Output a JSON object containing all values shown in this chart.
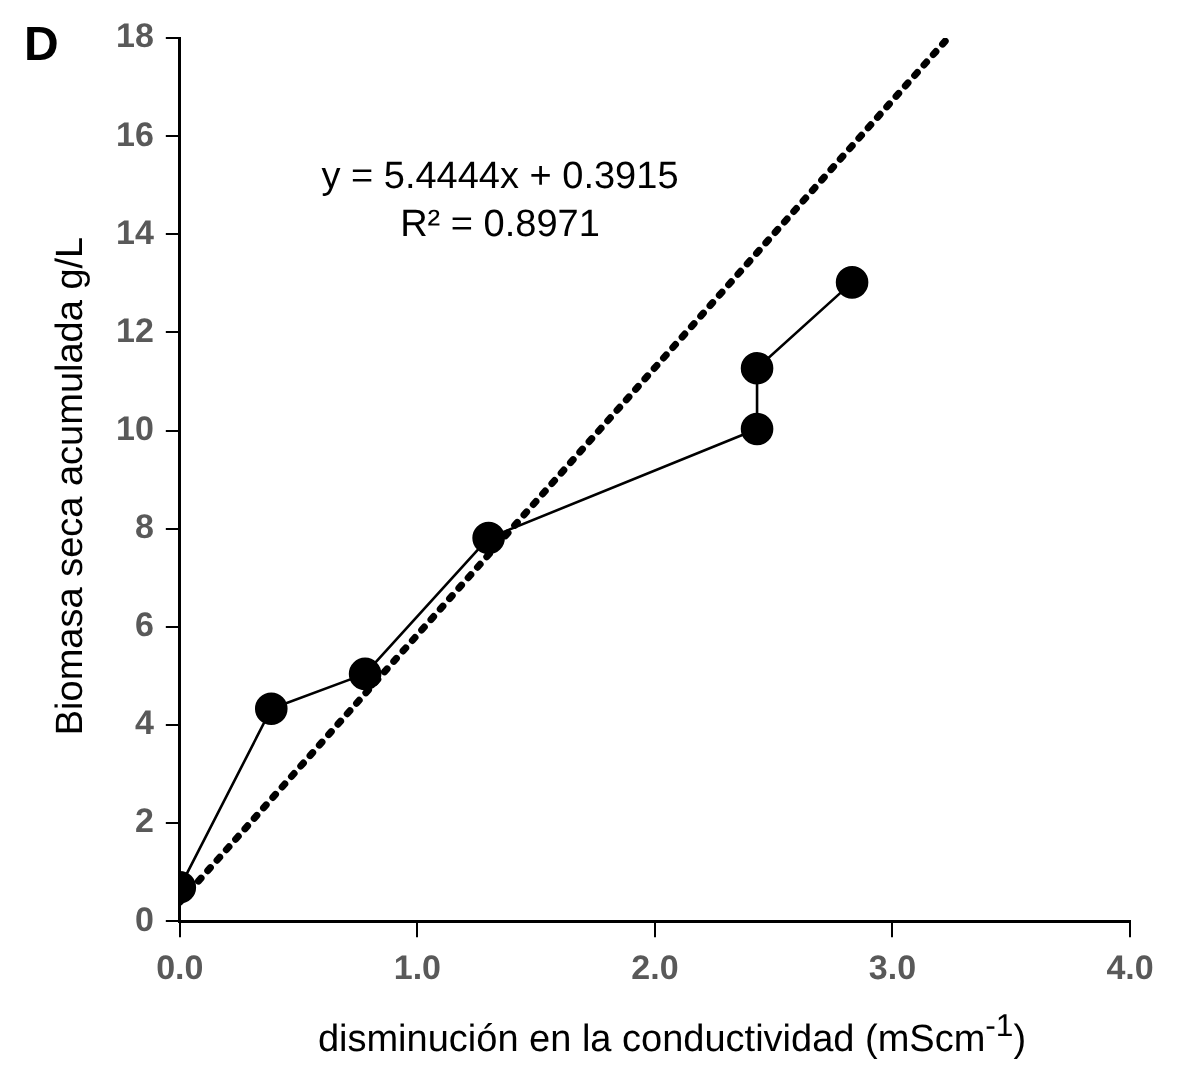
{
  "chart_data": {
    "type": "line",
    "xlabel": "disminución en la conductividad (mScm$^{-1}$)",
    "ylabel": "Biomasa seca acumulada g/L",
    "annotations": [
      "D",
      "y = 5.4444x + 0.3915",
      "R² = 0.8971"
    ],
    "series": [
      {
        "type": "line",
        "color": "#000000",
        "x": [
          0,
          0.385,
          0.78,
          1.3,
          2.43,
          2.43,
          2.83
        ],
        "values": [
          0.69,
          4.33,
          5.04,
          7.81,
          10.03,
          11.27,
          13.02
        ],
        "marker": "circle",
        "line_style": "solid"
      },
      {
        "type": "line",
        "color": "#000000",
        "x": [
          0,
          3.23
        ],
        "values": [
          0.39,
          17.98
        ],
        "marker": "none",
        "line_style": "dotted"
      }
    ],
    "xlim": [
      0,
      4
    ],
    "xticks": [
      {
        "value": 0,
        "label": "0.0"
      },
      {
        "value": 1,
        "label": "1.0"
      },
      {
        "value": 2,
        "label": "2.0"
      },
      {
        "value": 3,
        "label": "3.0"
      },
      {
        "value": 4,
        "label": "4.0"
      }
    ],
    "ylim": [
      0,
      18
    ],
    "yticks": [
      0,
      2,
      4,
      6,
      8,
      10,
      12,
      14,
      16,
      18
    ],
    "grid": false,
    "legend": false
  }
}
